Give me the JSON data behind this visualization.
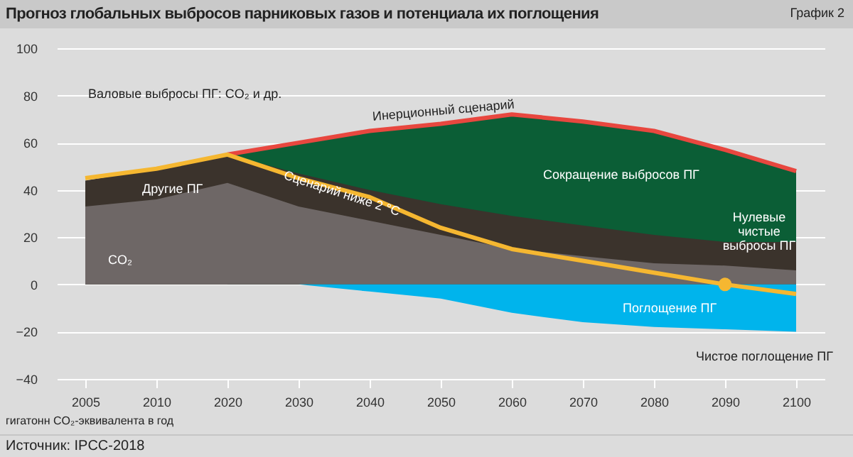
{
  "chart_data": {
    "type": "area",
    "title": "Прогноз глобальных выбросов парниковых газов и потенциала их поглощения",
    "subtitle": "График 2",
    "categories": [
      "2005",
      "2010",
      "2020",
      "2030",
      "2040",
      "2050",
      "2060",
      "2070",
      "2080",
      "2090",
      "2100"
    ],
    "series": [
      {
        "color": "#0b5e36",
        "values": [
          null,
          null,
          55,
          60,
          65,
          68,
          72,
          69,
          65,
          57,
          48
        ]
      },
      {
        "color": "#3b332c",
        "values": [
          44,
          49,
          55,
          47,
          40,
          34,
          29,
          25,
          21,
          18,
          18
        ]
      },
      {
        "color": "#6e6766",
        "values": [
          33,
          36,
          43,
          33,
          27,
          21,
          15,
          12,
          9,
          8,
          6
        ]
      },
      {
        "color": "#00b4ec",
        "values": [
          null,
          null,
          null,
          0,
          -3,
          -6,
          -12,
          -16,
          -18,
          -19,
          -20
        ]
      },
      {
        "type": "line",
        "color": "#e8473f",
        "values": [
          null,
          null,
          55,
          60,
          65,
          68,
          72,
          69,
          65,
          57,
          48
        ]
      },
      {
        "type": "line",
        "color": "#f5b731",
        "values": [
          45,
          49,
          55,
          45,
          37,
          24,
          15,
          10,
          5,
          0,
          -4
        ]
      },
      {
        "type": "scatter",
        "color": "#f5b731",
        "values": [
          null,
          null,
          null,
          null,
          null,
          null,
          null,
          null,
          null,
          0,
          null
        ]
      }
    ],
    "ylim": [
      -40,
      100
    ],
    "yticks": [
      -40,
      -20,
      0,
      20,
      40,
      60,
      80,
      100
    ],
    "grid": "y",
    "annotations": [
      "Валовые выбросы ПГ: CO₂ и др.",
      "Другие ПГ",
      "CO₂",
      "Инерционный сценарий",
      "Сценарий ниже 2 °С",
      "Сокращение выбросов ПГ",
      "Нулевые чистые выбросы ПГ",
      "Поглощение ПГ",
      "Чистое поглощение ПГ",
      "гигатонн CO₂-эквивалента в год",
      "Источник: IPCC-2018"
    ]
  }
}
